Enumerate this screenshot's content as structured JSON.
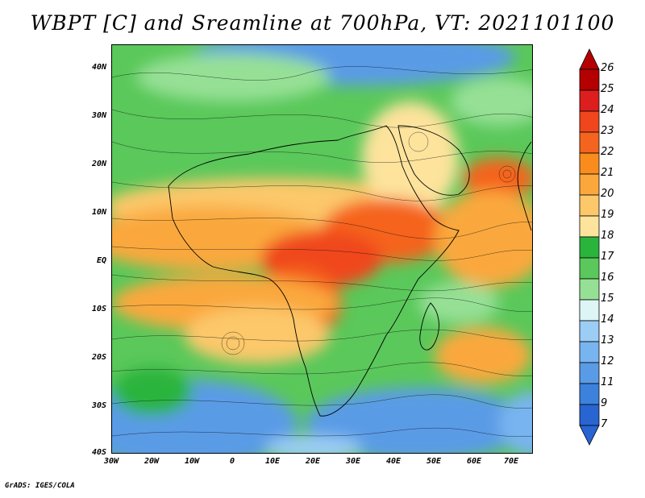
{
  "title": "WBPT [C] and Sreamline at 700hPa, VT: 2021101100",
  "footer": "GrADS: IGES/COLA",
  "map": {
    "lat_labels": [
      "40N",
      "30N",
      "20N",
      "10N",
      "EQ",
      "10S",
      "20S",
      "30S",
      "40S"
    ],
    "lon_labels": [
      "30W",
      "20W",
      "10W",
      "0",
      "10E",
      "20E",
      "30E",
      "40E",
      "50E",
      "60E",
      "70E"
    ],
    "lat_range": [
      -40,
      45
    ],
    "lon_range": [
      -30,
      75
    ]
  },
  "colorbar": {
    "labels": [
      "26",
      "25",
      "24",
      "23",
      "22",
      "21",
      "20",
      "19",
      "18",
      "17",
      "16",
      "15",
      "14",
      "13",
      "12",
      "11",
      "9",
      "7"
    ],
    "colors": [
      "#b40000",
      "#dc1e1e",
      "#f0461e",
      "#f5641e",
      "#fa8c1e",
      "#faa83c",
      "#fcc86a",
      "#fde39c",
      "#2ab43c",
      "#5ac85a",
      "#96e096",
      "#ddf5f5",
      "#9ccdf5",
      "#78b4f0",
      "#5a9be6",
      "#3c82dc",
      "#2864d2"
    ]
  }
}
